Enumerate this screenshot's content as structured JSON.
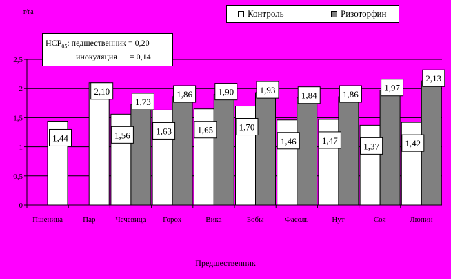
{
  "chart_data": {
    "type": "bar",
    "categories": [
      "Пшеница",
      "Пар",
      "Чечевица",
      "Горох",
      "Вика",
      "Бобы",
      "Фасоль",
      "Нут",
      "Соя",
      "Люпин"
    ],
    "series": [
      {
        "name": "Контроль",
        "values": [
          1.44,
          2.1,
          1.56,
          1.63,
          1.65,
          1.7,
          1.46,
          1.47,
          1.37,
          1.42
        ],
        "labels": [
          "1,44",
          "2,10",
          "1,56",
          "1,63",
          "1,65",
          "1,70",
          "1,46",
          "1,47",
          "1,37",
          "1,42"
        ]
      },
      {
        "name": "Ризоторфин",
        "values": [
          null,
          null,
          1.73,
          1.86,
          1.9,
          1.93,
          1.84,
          1.86,
          1.97,
          2.13
        ],
        "labels": [
          null,
          null,
          "1,73",
          "1,86",
          "1,90",
          "1,93",
          "1,84",
          "1,86",
          "1,97",
          "2,13"
        ]
      }
    ],
    "ylim": [
      0,
      2.5
    ],
    "yticks": [
      0,
      0.5,
      1,
      1.5,
      2,
      2.5
    ],
    "yticklabels": [
      "0",
      "0,5",
      "1",
      "1,5",
      "2",
      "2,5"
    ],
    "ylabel": "т/га",
    "xlabel": "Предшественник",
    "grid": true,
    "legend": "top-right",
    "colors": {
      "background": "#ff00ff",
      "control": "#ffffff",
      "treatment": "#808080",
      "grid": "#000000"
    }
  },
  "note": {
    "line1_prefix": "НСР",
    "line1_sub": "05",
    "line1_rest": ": педшественник = 0,20",
    "line2": "инокуляция      = 0,14"
  }
}
